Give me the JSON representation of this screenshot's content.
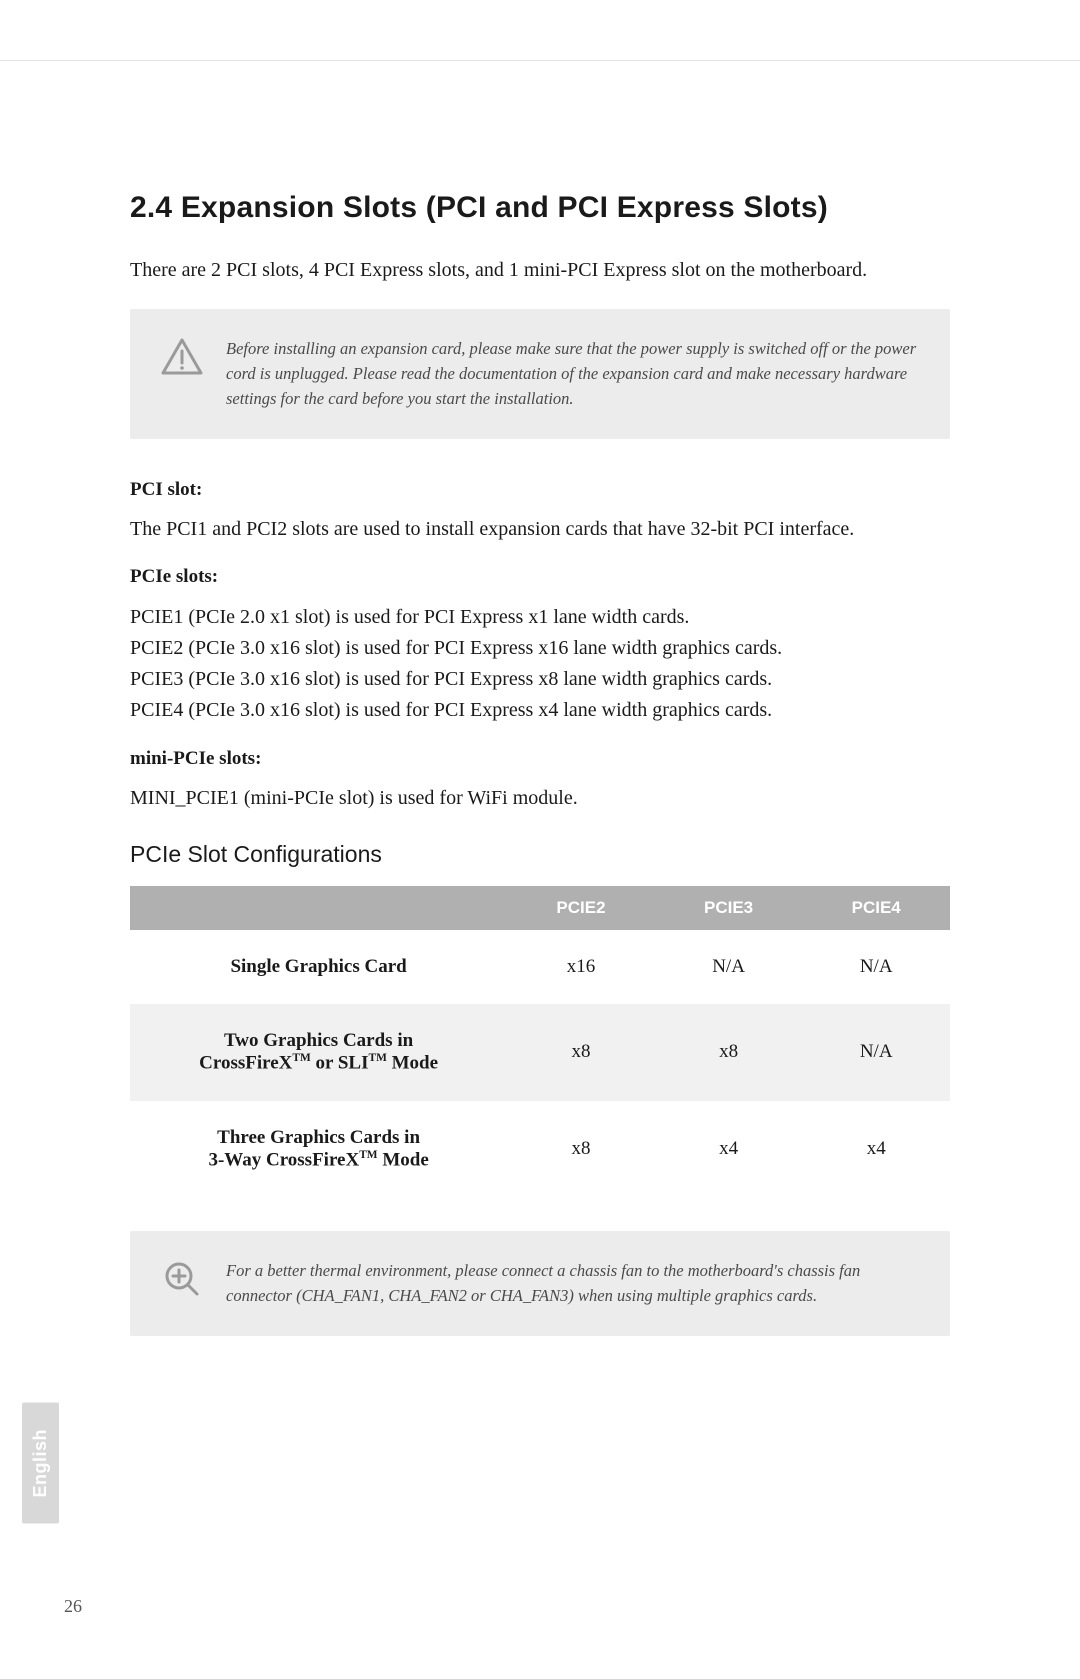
{
  "section": {
    "title": "2.4  Expansion Slots (PCI and PCI Express Slots)",
    "intro": "There are 2 PCI slots, 4 PCI Express slots, and 1 mini-PCI Express slot on the motherboard."
  },
  "warning": {
    "text": "Before installing an expansion card, please make sure that the power supply is switched off or the power cord is unplugged. Please read the documentation of the expansion card and make necessary hardware settings for the card before you start the installation.",
    "icon_stroke": "#9a9a9a",
    "bg": "#ececec"
  },
  "pci": {
    "heading": "PCI slot:",
    "text": "The PCI1 and PCI2 slots are used to install expansion cards that have 32-bit PCI interface."
  },
  "pcie": {
    "heading": "PCIe slots:",
    "lines": [
      "PCIE1 (PCIe 2.0 x1 slot) is used for PCI Express x1 lane width cards.",
      "PCIE2 (PCIe 3.0 x16 slot) is used for PCI Express x16 lane width graphics cards.",
      "PCIE3 (PCIe 3.0 x16 slot) is used for PCI Express x8 lane width graphics cards.",
      "PCIE4 (PCIe 3.0 x16 slot) is used for PCI Express x4 lane width graphics cards."
    ]
  },
  "minipcie": {
    "heading": "mini-PCIe slots:",
    "text": "MINI_PCIE1 (mini-PCIe slot) is used for WiFi module."
  },
  "table": {
    "title": "PCIe Slot Configurations",
    "header_bg": "#b0b0b0",
    "header_fg": "#ffffff",
    "alt_row_bg": "#f1f1f1",
    "columns": [
      "",
      "PCIE2",
      "PCIE3",
      "PCIE4"
    ],
    "rows": [
      {
        "label_html": "Single Graphics Card",
        "cells": [
          "x16",
          "N/A",
          "N/A"
        ],
        "alt": false
      },
      {
        "label_html": "Two Graphics Cards in<br>CrossFireX<sup class='tm'>TM</sup> or SLI<sup class='tm'>TM</sup> Mode",
        "cells": [
          "x8",
          "x8",
          "N/A"
        ],
        "alt": true
      },
      {
        "label_html": "Three Graphics Cards in<br>3-Way CrossFireX<sup class='tm'>TM</sup> Mode",
        "cells": [
          "x8",
          "x4",
          "x4"
        ],
        "alt": false
      }
    ]
  },
  "tip": {
    "text": "For a better thermal environment, please connect a chassis fan to the motherboard's chassis fan connector (CHA_FAN1, CHA_FAN2 or CHA_FAN3) when using multiple graphics cards.",
    "icon_stroke": "#9a9a9a",
    "bg": "#ececec"
  },
  "side_tab": "English",
  "page_number": "26"
}
